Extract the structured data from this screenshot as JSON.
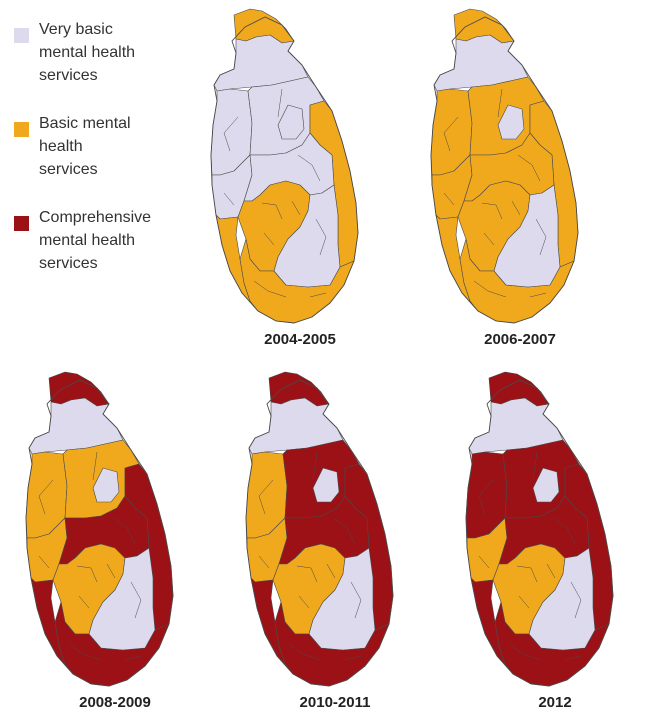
{
  "colors": {
    "very_basic": "#dcdaec",
    "basic": "#f0a91c",
    "comprehensive": "#9b1116",
    "border": "#4a4a4a"
  },
  "legend": [
    {
      "label": "Very basic\nmental health\nservices",
      "category": "very_basic"
    },
    {
      "label": "Basic mental\nhealth\nservices",
      "category": "basic"
    },
    {
      "label": "Comprehensive\nmental health\nservices",
      "category": "comprehensive"
    }
  ],
  "maps": [
    {
      "period": "2004-2005",
      "far_north": "basic",
      "north": "very_basic",
      "northwest": "very_basic",
      "north_central": "very_basic",
      "east": "basic",
      "west": "very_basic",
      "center": "very_basic",
      "southwest": "basic",
      "south_central": "basic",
      "south": "basic",
      "southeast": "very_basic",
      "inner": "very_basic"
    },
    {
      "period": "2006-2007",
      "far_north": "basic",
      "north": "very_basic",
      "northwest": "basic",
      "north_central": "basic",
      "east": "basic",
      "west": "basic",
      "center": "basic",
      "southwest": "basic",
      "south_central": "basic",
      "south": "basic",
      "southeast": "very_basic",
      "inner": "very_basic"
    },
    {
      "period": "2008-2009",
      "far_north": "comprehensive",
      "north": "very_basic",
      "northwest": "basic",
      "north_central": "basic",
      "east": "comprehensive",
      "west": "basic",
      "center": "comprehensive",
      "southwest": "comprehensive",
      "south_central": "basic",
      "south": "comprehensive",
      "southeast": "very_basic",
      "inner": "very_basic"
    },
    {
      "period": "2010-2011",
      "far_north": "comprehensive",
      "north": "very_basic",
      "northwest": "basic",
      "north_central": "comprehensive",
      "east": "comprehensive",
      "west": "basic",
      "center": "comprehensive",
      "southwest": "comprehensive",
      "south_central": "basic",
      "south": "comprehensive",
      "southeast": "very_basic",
      "inner": "very_basic"
    },
    {
      "period": "2012",
      "far_north": "comprehensive",
      "north": "very_basic",
      "northwest": "comprehensive",
      "north_central": "comprehensive",
      "east": "comprehensive",
      "west": "basic",
      "center": "comprehensive",
      "southwest": "comprehensive",
      "south_central": "basic",
      "south": "comprehensive",
      "southeast": "very_basic",
      "inner": "very_basic"
    }
  ]
}
